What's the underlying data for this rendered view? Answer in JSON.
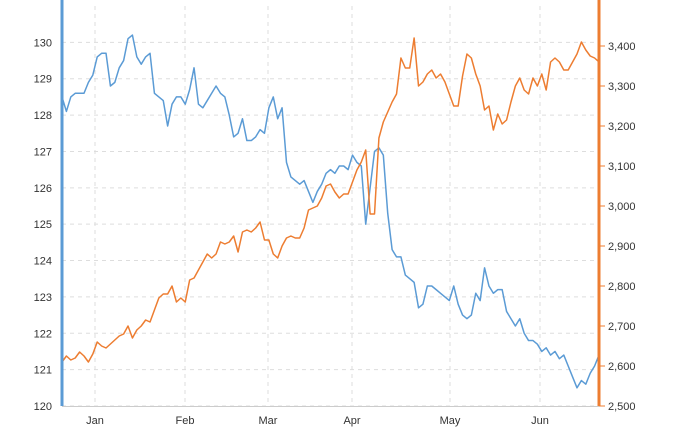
{
  "chart_data": {
    "type": "line",
    "title": "",
    "xlabel": "",
    "grid": true,
    "x_tick_labels": [
      "Jan",
      "Feb",
      "Mar",
      "Apr",
      "May",
      "Jun"
    ],
    "y_left": {
      "ylim": [
        120,
        131
      ],
      "ticks": [
        "120",
        "121",
        "122",
        "123",
        "124",
        "125",
        "126",
        "127",
        "128",
        "129",
        "130"
      ],
      "color": "#5b9bd5"
    },
    "y_right": {
      "ylim": [
        2500,
        3500
      ],
      "ticks": [
        "2,500",
        "2,600",
        "2,700",
        "2,800",
        "2,900",
        "3,000",
        "3,100",
        "3,200",
        "3,300",
        "3,400"
      ],
      "color": "#ed7d31"
    },
    "series": [
      {
        "axis": "left",
        "color": "#5b9bd5",
        "values": [
          128.5,
          128.1,
          128.5,
          128.6,
          128.6,
          128.6,
          128.9,
          129.1,
          129.6,
          129.7,
          129.7,
          128.8,
          128.9,
          129.3,
          129.5,
          130.1,
          130.2,
          129.6,
          129.4,
          129.6,
          129.7,
          128.6,
          128.5,
          128.4,
          127.7,
          128.3,
          128.5,
          128.5,
          128.3,
          128.7,
          129.3,
          128.3,
          128.2,
          128.4,
          128.6,
          128.8,
          128.6,
          128.5,
          128.0,
          127.4,
          127.5,
          127.9,
          127.3,
          127.3,
          127.4,
          127.6,
          127.5,
          128.2,
          128.5,
          127.9,
          128.2,
          126.7,
          126.3,
          126.2,
          126.1,
          126.2,
          125.9,
          125.6,
          125.9,
          126.1,
          126.4,
          126.5,
          126.4,
          126.6,
          126.6,
          126.5,
          126.9,
          126.7,
          126.6,
          125.0,
          126.0,
          127.0,
          127.1,
          126.9,
          125.3,
          124.3,
          124.1,
          124.1,
          123.6,
          123.5,
          123.4,
          122.7,
          122.8,
          123.3,
          123.3,
          123.2,
          123.1,
          123.0,
          122.9,
          123.3,
          122.8,
          122.5,
          122.4,
          122.5,
          123.1,
          122.9,
          123.8,
          123.3,
          123.1,
          123.2,
          123.2,
          122.6,
          122.4,
          122.2,
          122.4,
          122.0,
          121.8,
          121.8,
          121.7,
          121.5,
          121.6,
          121.4,
          121.5,
          121.3,
          121.4,
          121.1,
          120.8,
          120.5,
          120.7,
          120.6,
          120.9,
          121.1,
          121.4
        ]
      },
      {
        "axis": "right",
        "color": "#ed7d31",
        "values": [
          2610,
          2625,
          2615,
          2620,
          2635,
          2625,
          2610,
          2630,
          2660,
          2650,
          2645,
          2655,
          2665,
          2675,
          2680,
          2700,
          2670,
          2690,
          2700,
          2715,
          2710,
          2740,
          2770,
          2780,
          2780,
          2800,
          2760,
          2770,
          2760,
          2815,
          2820,
          2840,
          2860,
          2880,
          2870,
          2880,
          2910,
          2905,
          2910,
          2925,
          2885,
          2935,
          2940,
          2935,
          2945,
          2960,
          2915,
          2915,
          2880,
          2870,
          2900,
          2920,
          2925,
          2920,
          2920,
          2945,
          2990,
          2995,
          3000,
          3020,
          3050,
          3055,
          3035,
          3020,
          3030,
          3030,
          3060,
          3090,
          3110,
          3140,
          2980,
          2980,
          3170,
          3210,
          3235,
          3260,
          3280,
          3370,
          3345,
          3345,
          3420,
          3300,
          3310,
          3330,
          3340,
          3320,
          3330,
          3310,
          3280,
          3250,
          3250,
          3325,
          3380,
          3370,
          3330,
          3300,
          3240,
          3250,
          3190,
          3230,
          3205,
          3215,
          3260,
          3300,
          3320,
          3290,
          3280,
          3320,
          3300,
          3330,
          3290,
          3360,
          3370,
          3360,
          3340,
          3340,
          3360,
          3380,
          3410,
          3390,
          3375,
          3370,
          3360
        ]
      }
    ]
  }
}
